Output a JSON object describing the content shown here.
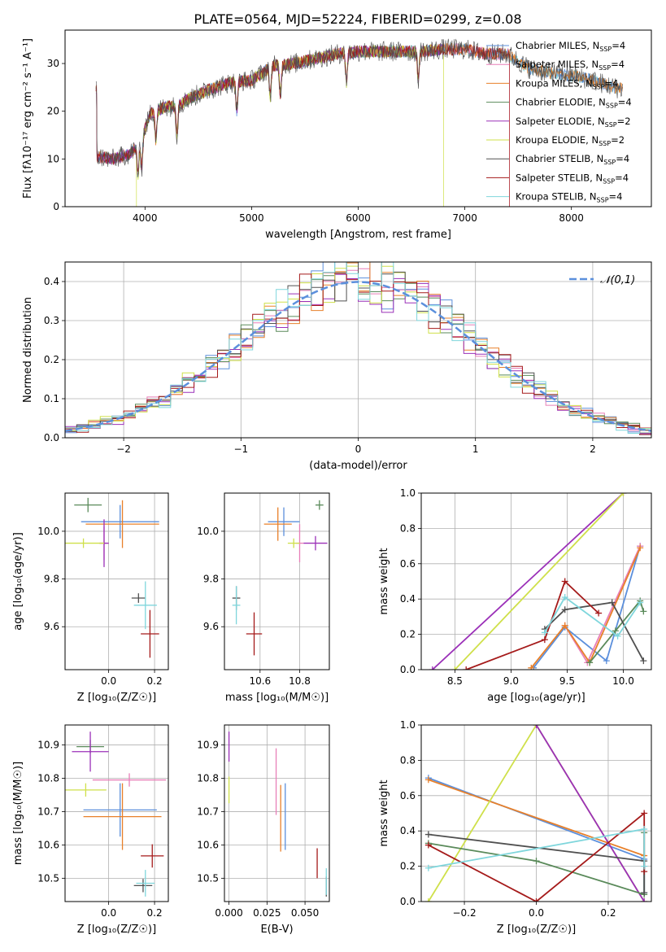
{
  "figure": {
    "title": "PLATE=0564, MJD=52224, FIBERID=0299, z=0.08"
  },
  "colors": {
    "chabrier_miles": "#5b8fdc",
    "salpeter_miles": "#e87fb8",
    "kroupa_miles": "#e8802a",
    "chabrier_elodie": "#5a8a5a",
    "salpeter_elodie": "#9b30b8",
    "kroupa_elodie": "#cfe04a",
    "chabrier_stelib": "#505050",
    "salpeter_stelib": "#a51a1a",
    "kroupa_stelib": "#7fd6dc",
    "normal_curve": "#5b8fdc"
  },
  "chart_data": [
    {
      "id": "spectrum",
      "type": "line",
      "xlabel": "wavelength [Angstrom, rest frame]",
      "ylabel": "Flux [fλ10⁻¹⁷ erg cm⁻² s⁻¹ A⁻¹]",
      "xlim": [
        3250,
        8750
      ],
      "ylim": [
        0,
        37
      ],
      "xticks": [
        4000,
        5000,
        6000,
        7000,
        8000
      ],
      "yticks": [
        0,
        10,
        20,
        30
      ],
      "grid": false,
      "legend_position": "right",
      "legend": [
        "Chabrier MILES, N_SSP=4",
        "Salpeter MILES, N_SSP=4",
        "Kroupa MILES, N_SSP=4",
        "Chabrier ELODIE, N_SSP=4",
        "Salpeter ELODIE, N_SSP=2",
        "Kroupa ELODIE, N_SSP=2",
        "Chabrier STELIB, N_SSP=4",
        "Salpeter STELIB, N_SSP=4",
        "Kroupa STELIB, N_SSP=4"
      ],
      "continuum": {
        "x": [
          3550,
          3700,
          3850,
          3950,
          4050,
          4200,
          4300,
          4400,
          4600,
          4800,
          5000,
          5200,
          5400,
          5600,
          5800,
          6000,
          6200,
          6400,
          6600,
          6800,
          7000,
          7200,
          7400,
          7600,
          7800,
          8000,
          8200,
          8400,
          8500
        ],
        "y": [
          10.5,
          10,
          11,
          13,
          19.5,
          21,
          21,
          22.5,
          24.5,
          26,
          26.5,
          29.5,
          30,
          31,
          32,
          32.5,
          32.5,
          32.5,
          32.5,
          33,
          33,
          32,
          32,
          29,
          28,
          27.5,
          26.5,
          25,
          24.5
        ]
      },
      "absorption_lines": [
        3934,
        3969,
        4102,
        4300,
        4861,
        5175,
        5270,
        5890,
        6563
      ],
      "drops": [
        {
          "series": "Kroupa ELODIE, N_SSP=2",
          "wavelength": 3920
        },
        {
          "series": "Kroupa ELODIE, N_SSP=2",
          "wavelength": 6800
        },
        {
          "series": "Salpeter MILES, N_SSP=4",
          "wavelength": 7420
        }
      ]
    },
    {
      "id": "residuals",
      "type": "histogram",
      "xlabel": "(data-model)/error",
      "ylabel": "Normed distribution",
      "xlim": [
        -2.5,
        2.5
      ],
      "ylim": [
        0,
        0.45
      ],
      "xticks": [
        -2,
        -1,
        0,
        1,
        2
      ],
      "yticks": [
        0.0,
        0.1,
        0.2,
        0.3,
        0.4
      ],
      "grid": true,
      "legend_position": "top-right",
      "legend": [
        "𝒩(0,1)"
      ],
      "bin_width": 0.1,
      "curve": {
        "name": "𝒩(0,1)",
        "mean": 0,
        "sigma": 1
      }
    },
    {
      "id": "age_vs_Z",
      "type": "scatter",
      "xlabel": "Z [log₁₀(Z/Z☉)]",
      "ylabel": "age  [log₁₀(age/yr)]",
      "xlim": [
        -0.19,
        0.26
      ],
      "ylim": [
        9.42,
        10.16
      ],
      "xticks": [
        0.0,
        0.2
      ],
      "yticks": [
        9.6,
        9.8,
        10.0
      ],
      "grid": true,
      "points": [
        {
          "c": "chabrier_miles",
          "x": 0.05,
          "xerr": 0.17,
          "y": 10.04,
          "yerr": 0.07
        },
        {
          "c": "salpeter_miles",
          "x": -0.02,
          "xerr": 0.02,
          "y": 9.95,
          "yerr": 0.07
        },
        {
          "c": "kroupa_miles",
          "x": 0.06,
          "xerr": 0.16,
          "y": 10.03,
          "yerr": 0.1
        },
        {
          "c": "chabrier_elodie",
          "x": -0.09,
          "xerr": 0.06,
          "y": 10.11,
          "yerr": 0.03
        },
        {
          "c": "salpeter_elodie",
          "x": -0.02,
          "xerr": 0.02,
          "y": 9.95,
          "yerr": 0.1
        },
        {
          "c": "kroupa_elodie",
          "x": -0.11,
          "xerr": 0.09,
          "y": 9.95,
          "yerr": 0.02
        },
        {
          "c": "chabrier_stelib",
          "x": 0.13,
          "xerr": 0.03,
          "y": 9.72,
          "yerr": 0.02
        },
        {
          "c": "salpeter_stelib",
          "x": 0.18,
          "xerr": 0.04,
          "y": 9.57,
          "yerr": 0.1
        },
        {
          "c": "kroupa_stelib",
          "x": 0.16,
          "xerr": 0.05,
          "y": 9.69,
          "yerr": 0.1
        }
      ]
    },
    {
      "id": "age_vs_mass",
      "type": "scatter",
      "xlabel": "mass [log₁₀(M/M☉)]",
      "ylabel": "",
      "xlim": [
        10.42,
        10.95
      ],
      "ylim": [
        9.42,
        10.16
      ],
      "xticks": [
        10.6,
        10.8
      ],
      "yticks": [
        9.6,
        9.8,
        10.0
      ],
      "grid": true,
      "points": [
        {
          "c": "chabrier_miles",
          "x": 10.72,
          "xerr": 0.08,
          "y": 10.04,
          "yerr": 0.06
        },
        {
          "c": "salpeter_miles",
          "x": 10.8,
          "xerr": 0.02,
          "y": 9.95,
          "yerr": 0.08
        },
        {
          "c": "kroupa_miles",
          "x": 10.69,
          "xerr": 0.07,
          "y": 10.03,
          "yerr": 0.07
        },
        {
          "c": "chabrier_elodie",
          "x": 10.9,
          "xerr": 0.02,
          "y": 10.11,
          "yerr": 0.02
        },
        {
          "c": "salpeter_elodie",
          "x": 10.88,
          "xerr": 0.06,
          "y": 9.95,
          "yerr": 0.03
        },
        {
          "c": "kroupa_elodie",
          "x": 10.77,
          "xerr": 0.03,
          "y": 9.95,
          "yerr": 0.02
        },
        {
          "c": "chabrier_stelib",
          "x": 10.48,
          "xerr": 0.02,
          "y": 9.72,
          "yerr": 0.05
        },
        {
          "c": "salpeter_stelib",
          "x": 10.57,
          "xerr": 0.04,
          "y": 9.57,
          "yerr": 0.09
        },
        {
          "c": "kroupa_stelib",
          "x": 10.48,
          "xerr": 0.02,
          "y": 9.69,
          "yerr": 0.08
        }
      ]
    },
    {
      "id": "weight_vs_age",
      "type": "line",
      "xlabel": "age  [log₁₀(age/yr)]",
      "ylabel": "mass weight",
      "xlim": [
        8.2,
        10.25
      ],
      "ylim": [
        0.0,
        1.0
      ],
      "xticks": [
        8.5,
        9.0,
        9.5,
        10.0
      ],
      "yticks": [
        0.0,
        0.2,
        0.4,
        0.6,
        0.8,
        1.0
      ],
      "grid": true,
      "series": [
        {
          "c": "chabrier_miles",
          "x": [
            9.2,
            9.48,
            9.85,
            10.15
          ],
          "y": [
            0.01,
            0.24,
            0.05,
            0.7
          ]
        },
        {
          "c": "salpeter_miles",
          "x": [
            9.48,
            9.68,
            10.15
          ],
          "y": [
            0.25,
            0.04,
            0.7
          ]
        },
        {
          "c": "kroupa_miles",
          "x": [
            9.18,
            9.48,
            9.7,
            10.15
          ],
          "y": [
            0.01,
            0.25,
            0.04,
            0.69
          ]
        },
        {
          "c": "chabrier_elodie",
          "x": [
            9.7,
            9.93,
            10.15,
            10.18
          ],
          "y": [
            0.04,
            0.22,
            0.39,
            0.33
          ]
        },
        {
          "c": "salpeter_elodie",
          "x": [
            8.3,
            10.0
          ],
          "y": [
            0.0,
            1.0
          ]
        },
        {
          "c": "kroupa_elodie",
          "x": [
            8.5,
            10.0
          ],
          "y": [
            0.0,
            1.0
          ]
        },
        {
          "c": "chabrier_stelib",
          "x": [
            9.3,
            9.48,
            9.9,
            10.18
          ],
          "y": [
            0.23,
            0.34,
            0.38,
            0.05
          ]
        },
        {
          "c": "salpeter_stelib",
          "x": [
            8.6,
            9.3,
            9.48,
            9.78
          ],
          "y": [
            0.0,
            0.17,
            0.5,
            0.32
          ]
        },
        {
          "c": "kroupa_stelib",
          "x": [
            9.3,
            9.48,
            9.95,
            10.15
          ],
          "y": [
            0.21,
            0.41,
            0.19,
            0.38
          ]
        }
      ]
    },
    {
      "id": "mass_vs_Z",
      "type": "scatter",
      "xlabel": "Z [log₁₀(Z/Z☉)]",
      "ylabel": "mass [log₁₀(M/M☉)]",
      "xlim": [
        -0.19,
        0.26
      ],
      "ylim": [
        10.43,
        10.96
      ],
      "xticks": [
        0.0,
        0.2
      ],
      "yticks": [
        10.5,
        10.6,
        10.7,
        10.8,
        10.9
      ],
      "grid": true,
      "points": [
        {
          "c": "chabrier_miles",
          "x": 0.05,
          "xerr": 0.16,
          "y": 10.705,
          "yerr": 0.08
        },
        {
          "c": "salpeter_miles",
          "x": 0.09,
          "xerr": 0.16,
          "y": 10.795,
          "yerr": 0.02
        },
        {
          "c": "kroupa_miles",
          "x": 0.06,
          "xerr": 0.17,
          "y": 10.685,
          "yerr": 0.1
        },
        {
          "c": "chabrier_elodie",
          "x": -0.08,
          "xerr": 0.06,
          "y": 10.895,
          "yerr": 0.02
        },
        {
          "c": "salpeter_elodie",
          "x": -0.08,
          "xerr": 0.08,
          "y": 10.88,
          "yerr": 0.06
        },
        {
          "c": "kroupa_elodie",
          "x": -0.1,
          "xerr": 0.09,
          "y": 10.765,
          "yerr": 0.02
        },
        {
          "c": "chabrier_stelib",
          "x": 0.15,
          "xerr": 0.04,
          "y": 10.478,
          "yerr": 0.02
        },
        {
          "c": "salpeter_stelib",
          "x": 0.19,
          "xerr": 0.05,
          "y": 10.567,
          "yerr": 0.035
        },
        {
          "c": "kroupa_stelib",
          "x": 0.16,
          "xerr": 0.04,
          "y": 10.485,
          "yerr": 0.04
        }
      ]
    },
    {
      "id": "mass_vs_ebv",
      "type": "scatter",
      "xlabel": "E(B-V)",
      "ylabel": "",
      "xlim": [
        -0.003,
        0.066
      ],
      "ylim": [
        10.43,
        10.96
      ],
      "xticks": [
        0.0,
        0.025,
        0.05
      ],
      "ytick_labels_x": [
        10.5,
        10.6,
        10.7,
        10.8,
        10.9
      ],
      "grid": true,
      "points": [
        {
          "c": "chabrier_miles",
          "x": 0.037,
          "y": 10.685,
          "yerr": 0.1
        },
        {
          "c": "salpeter_miles",
          "x": 0.031,
          "y": 10.79,
          "yerr": 0.1
        },
        {
          "c": "kroupa_miles",
          "x": 0.034,
          "y": 10.68,
          "yerr": 0.1
        },
        {
          "c": "salpeter_elodie",
          "x": 0.0,
          "y": 10.895,
          "yerr": 0.045
        },
        {
          "c": "kroupa_elodie",
          "x": 0.0,
          "y": 10.765,
          "yerr": 0.04
        },
        {
          "c": "chabrier_stelib",
          "x": 0.064,
          "y": 10.475,
          "yerr": 0.03
        },
        {
          "c": "salpeter_stelib",
          "x": 0.058,
          "y": 10.545,
          "yerr": 0.045
        },
        {
          "c": "kroupa_stelib",
          "x": 0.064,
          "y": 10.49,
          "yerr": 0.04
        }
      ]
    },
    {
      "id": "weight_vs_Z",
      "type": "line",
      "xlabel": "Z [log₁₀(Z/Z☉)]",
      "ylabel": "mass weight",
      "xlim": [
        -0.32,
        0.32
      ],
      "ylim": [
        0.0,
        1.0
      ],
      "xticks": [
        -0.2,
        0.0,
        0.2
      ],
      "yticks": [
        0.0,
        0.2,
        0.4,
        0.6,
        0.8,
        1.0
      ],
      "grid": true,
      "series": [
        {
          "c": "chabrier_miles",
          "x": [
            -0.3,
            0.3,
            0.3
          ],
          "y": [
            0.7,
            0.24,
            0.05
          ]
        },
        {
          "c": "kroupa_miles",
          "x": [
            -0.3,
            0.3
          ],
          "y": [
            0.69,
            0.26
          ]
        },
        {
          "c": "kroupa_elodie",
          "x": [
            -0.3,
            0.0,
            0.3
          ],
          "y": [
            0.0,
            1.0,
            0.0
          ]
        },
        {
          "c": "salpeter_elodie",
          "x": [
            0.0,
            0.3
          ],
          "y": [
            1.0,
            0.0
          ]
        },
        {
          "c": "chabrier_elodie",
          "x": [
            -0.3,
            0.0,
            0.3,
            0.3
          ],
          "y": [
            0.33,
            0.23,
            0.04,
            0.39
          ]
        },
        {
          "c": "chabrier_stelib",
          "x": [
            -0.3,
            0.3,
            0.3
          ],
          "y": [
            0.38,
            0.23,
            0.05
          ]
        },
        {
          "c": "salpeter_stelib",
          "x": [
            -0.3,
            0.0,
            0.3,
            0.3
          ],
          "y": [
            0.32,
            0.0,
            0.5,
            0.17
          ]
        },
        {
          "c": "kroupa_stelib",
          "x": [
            -0.3,
            0.3,
            0.3
          ],
          "y": [
            0.19,
            0.41,
            0.2
          ]
        }
      ]
    }
  ]
}
